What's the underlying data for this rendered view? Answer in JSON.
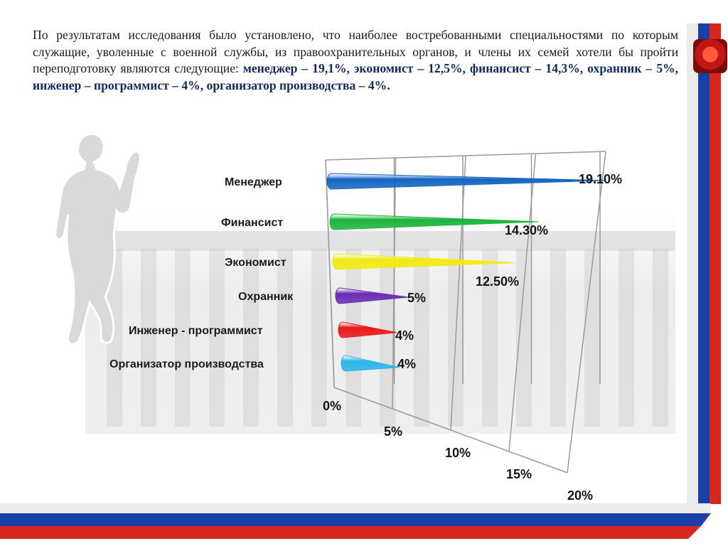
{
  "intro": {
    "plain": "По результатам исследования было установлено, что наиболее востребованными специальностями по которым служащие, уволенные с военной службы, из правоохранительных органов, и члены их семей хотели бы пройти переподготовку являются следующие: ",
    "bold": "менеджер – 19,1%, экономист – 12,5%, финансист – 14,3%, охранник – 5%, инженер – программист – 4%, организатор производства – 4%."
  },
  "chart_data": {
    "type": "bar",
    "orientation": "horizontal",
    "categories": [
      "Менеджер",
      "Финансист",
      "Экономист",
      "Охранник",
      "Инженер - программист",
      "Организатор производства"
    ],
    "values": [
      19.1,
      14.3,
      12.5,
      5,
      4,
      4
    ],
    "value_labels": [
      "19.10%",
      "14.30%",
      "12.50%",
      "5%",
      "4%",
      "4%"
    ],
    "colors": [
      "#1565c0",
      "#1db33c",
      "#f2ea12",
      "#6a2bb5",
      "#e81818",
      "#29b6e8"
    ],
    "xlim": [
      0,
      20
    ],
    "x_ticks": [
      0,
      5,
      10,
      15,
      20
    ],
    "x_tick_labels": [
      "0%",
      "5%",
      "10%",
      "15%",
      "20%"
    ],
    "grid": true,
    "legend": "none"
  }
}
